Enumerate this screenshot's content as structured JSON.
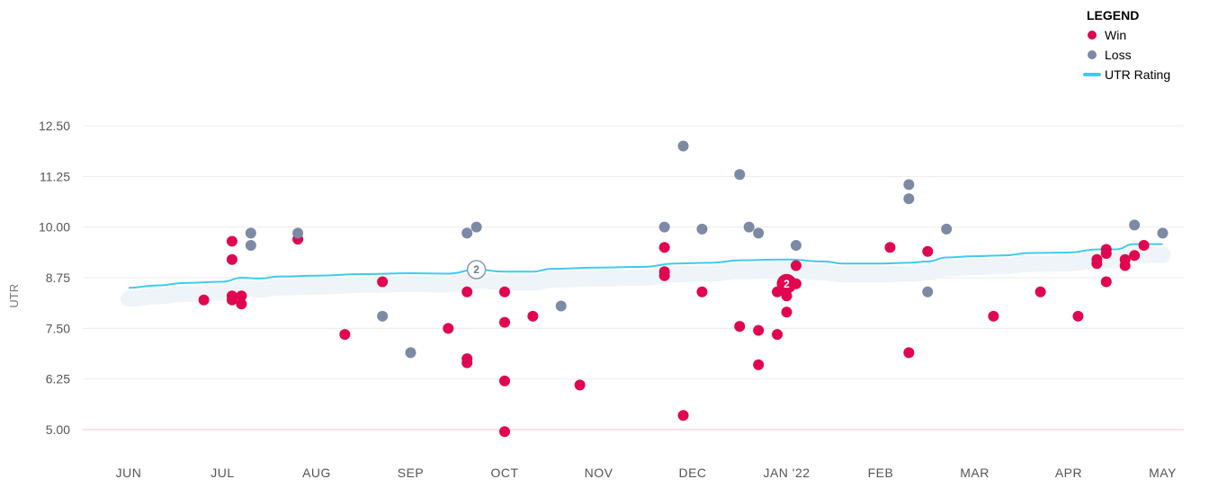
{
  "legend": {
    "title": "LEGEND",
    "items": [
      {
        "label": "Win",
        "color": "#e0064f",
        "kind": "dot"
      },
      {
        "label": "Loss",
        "color": "#7d8aa6",
        "kind": "dot"
      },
      {
        "label": "UTR Rating",
        "color": "#3fcbf0",
        "kind": "line"
      }
    ]
  },
  "chart_data": {
    "type": "scatter",
    "title": "",
    "xlabel": "",
    "ylabel": "UTR",
    "ylim": [
      5.0,
      12.5
    ],
    "yticks": [
      "12.50",
      "11.25",
      "10.00",
      "8.75",
      "7.50",
      "6.25",
      "5.00"
    ],
    "yvalues": [
      12.5,
      11.25,
      10.0,
      8.75,
      7.5,
      6.25,
      5.0
    ],
    "xticks": [
      "JUN",
      "JUL",
      "AUG",
      "SEP",
      "OCT",
      "NOV",
      "DEC",
      "JAN '22",
      "FEB",
      "MAR",
      "APR",
      "MAY"
    ],
    "grid": true,
    "legend_position": "top-right",
    "colors": {
      "win": "#e0064f",
      "loss": "#7d8aa6",
      "rating": "#3fcbf0"
    },
    "series": [
      {
        "name": "Win",
        "points": [
          [
            0.8,
            8.2
          ],
          [
            1.1,
            9.65
          ],
          [
            1.1,
            9.2
          ],
          [
            1.1,
            8.3
          ],
          [
            1.1,
            8.2
          ],
          [
            1.2,
            8.3
          ],
          [
            1.2,
            8.1
          ],
          [
            1.8,
            9.7
          ],
          [
            2.3,
            7.35
          ],
          [
            2.7,
            8.65
          ],
          [
            3.4,
            7.5
          ],
          [
            3.6,
            8.4
          ],
          [
            3.6,
            6.75
          ],
          [
            3.6,
            6.65
          ],
          [
            4.0,
            8.4
          ],
          [
            4.0,
            7.65
          ],
          [
            4.0,
            6.2
          ],
          [
            4.0,
            4.95
          ],
          [
            4.3,
            7.8
          ],
          [
            4.8,
            6.1
          ],
          [
            5.7,
            9.5
          ],
          [
            5.7,
            8.9
          ],
          [
            5.7,
            8.8
          ],
          [
            5.9,
            5.35
          ],
          [
            6.1,
            8.4
          ],
          [
            6.5,
            7.55
          ],
          [
            6.7,
            7.45
          ],
          [
            6.7,
            6.6
          ],
          [
            6.9,
            7.35
          ],
          [
            6.9,
            8.4
          ],
          [
            7.0,
            8.3
          ],
          [
            7.0,
            7.9
          ],
          [
            7.1,
            9.05
          ],
          [
            7.1,
            8.6
          ],
          [
            8.1,
            9.5
          ],
          [
            8.3,
            6.9
          ],
          [
            8.5,
            9.4
          ],
          [
            9.2,
            7.8
          ],
          [
            9.7,
            8.4
          ],
          [
            10.1,
            7.8
          ],
          [
            10.3,
            9.2
          ],
          [
            10.3,
            9.1
          ],
          [
            10.4,
            9.45
          ],
          [
            10.4,
            9.35
          ],
          [
            10.4,
            8.65
          ],
          [
            10.6,
            9.2
          ],
          [
            10.6,
            9.05
          ],
          [
            10.7,
            9.3
          ],
          [
            10.8,
            9.55
          ]
        ]
      },
      {
        "name": "Loss",
        "points": [
          [
            1.3,
            9.85
          ],
          [
            1.3,
            9.55
          ],
          [
            1.8,
            9.85
          ],
          [
            2.7,
            7.8
          ],
          [
            3.0,
            6.9
          ],
          [
            3.6,
            9.85
          ],
          [
            3.7,
            10.0
          ],
          [
            4.6,
            8.05
          ],
          [
            5.7,
            10.0
          ],
          [
            5.9,
            12.0
          ],
          [
            6.1,
            9.95
          ],
          [
            6.5,
            11.3
          ],
          [
            6.6,
            10.0
          ],
          [
            6.7,
            9.85
          ],
          [
            7.1,
            9.55
          ],
          [
            8.3,
            11.05
          ],
          [
            8.3,
            10.7
          ],
          [
            8.5,
            8.4
          ],
          [
            8.7,
            9.95
          ],
          [
            10.7,
            10.05
          ],
          [
            11.0,
            9.85
          ]
        ]
      },
      {
        "name": "UTR Rating",
        "points": [
          [
            0.0,
            8.5
          ],
          [
            0.3,
            8.56
          ],
          [
            0.6,
            8.62
          ],
          [
            1.0,
            8.65
          ],
          [
            1.2,
            8.75
          ],
          [
            1.4,
            8.73
          ],
          [
            1.6,
            8.78
          ],
          [
            2.0,
            8.8
          ],
          [
            2.5,
            8.84
          ],
          [
            3.0,
            8.86
          ],
          [
            3.4,
            8.85
          ],
          [
            3.7,
            8.95
          ],
          [
            4.0,
            8.9
          ],
          [
            4.3,
            8.9
          ],
          [
            4.5,
            8.97
          ],
          [
            5.0,
            9.0
          ],
          [
            5.5,
            9.02
          ],
          [
            5.8,
            9.1
          ],
          [
            6.2,
            9.12
          ],
          [
            6.5,
            9.18
          ],
          [
            7.0,
            9.2
          ],
          [
            7.4,
            9.15
          ],
          [
            7.6,
            9.1
          ],
          [
            8.0,
            9.1
          ],
          [
            8.3,
            9.12
          ],
          [
            8.5,
            9.15
          ],
          [
            8.7,
            9.25
          ],
          [
            9.0,
            9.28
          ],
          [
            9.3,
            9.3
          ],
          [
            9.6,
            9.36
          ],
          [
            10.0,
            9.37
          ],
          [
            10.3,
            9.45
          ],
          [
            10.5,
            9.45
          ],
          [
            10.7,
            9.58
          ],
          [
            11.0,
            9.58
          ]
        ]
      }
    ],
    "annotations": [
      {
        "label": "2",
        "x": 3.7,
        "y": 8.95,
        "kind": "rating"
      },
      {
        "label": "2",
        "x": 7.0,
        "y": 8.6,
        "kind": "win"
      }
    ]
  }
}
